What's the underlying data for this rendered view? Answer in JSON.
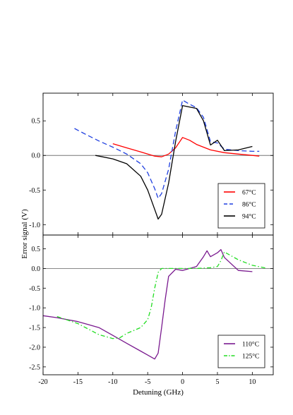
{
  "chart_data": [
    {
      "type": "line",
      "panel": "top",
      "xlabel": "Detuning (GHz)",
      "ylabel": "Error signal (V)",
      "xlim": [
        -20,
        13
      ],
      "ylim": [
        -1.15,
        0.9
      ],
      "xticks": [
        -20,
        -15,
        -10,
        -5,
        0,
        5,
        10
      ],
      "yticks": [
        0.5,
        0.0,
        -0.5,
        -1.0
      ],
      "ytick_labels": [
        "0.5",
        "0.0",
        "-0.5",
        "-1.0"
      ],
      "zero_line": true,
      "grid": false,
      "legend_position": "bottom-right",
      "series": [
        {
          "name": "67°C",
          "color": "#ff0000",
          "dash": "solid",
          "x": [
            -10,
            -8,
            -6,
            -5,
            -4,
            -3,
            -2,
            -1,
            0,
            1,
            2,
            3,
            4,
            6,
            8,
            10,
            11
          ],
          "y": [
            0.17,
            0.11,
            0.05,
            0.02,
            -0.01,
            -0.02,
            0.02,
            0.11,
            0.26,
            0.22,
            0.16,
            0.12,
            0.08,
            0.04,
            0.02,
            0.0,
            -0.01
          ]
        },
        {
          "name": "86°C",
          "color": "#1f3fe0",
          "dash": "dashed",
          "x": [
            -15.5,
            -14,
            -12,
            -10,
            -8,
            -6,
            -5,
            -4,
            -3.5,
            -3,
            -2,
            -1,
            0,
            1,
            2,
            3,
            4,
            5,
            6,
            8,
            10,
            11
          ],
          "y": [
            0.39,
            0.31,
            0.21,
            0.12,
            0.02,
            -0.12,
            -0.25,
            -0.48,
            -0.62,
            -0.55,
            -0.2,
            0.35,
            0.8,
            0.74,
            0.69,
            0.55,
            0.2,
            0.18,
            0.09,
            0.07,
            0.06,
            0.06
          ]
        },
        {
          "name": "94°C",
          "color": "#000000",
          "dash": "solid",
          "x": [
            -12.5,
            -10,
            -8,
            -6,
            -5,
            -4,
            -3.5,
            -3,
            -2,
            -1,
            0,
            1,
            2,
            3,
            4,
            5,
            6,
            8,
            10
          ],
          "y": [
            0.0,
            -0.05,
            -0.12,
            -0.3,
            -0.5,
            -0.78,
            -0.92,
            -0.85,
            -0.4,
            0.2,
            0.72,
            0.7,
            0.68,
            0.5,
            0.15,
            0.22,
            0.07,
            0.08,
            0.13
          ]
        }
      ]
    },
    {
      "type": "line",
      "panel": "bottom",
      "xlabel": "Detuning (GHz)",
      "ylabel": "",
      "xlim": [
        -20,
        13
      ],
      "ylim": [
        -2.7,
        0.85
      ],
      "xticks": [
        -20,
        -15,
        -10,
        -5,
        0,
        5,
        10
      ],
      "yticks": [
        0.5,
        0.0,
        -0.5,
        -1.0,
        -1.5,
        -2.0,
        -2.5
      ],
      "ytick_labels": [
        "0.5",
        "0.0",
        "-0.5",
        "-1.0",
        "-1.5",
        "-2.0",
        "-2.5"
      ],
      "zero_line": true,
      "grid": false,
      "legend_position": "bottom-right",
      "series": [
        {
          "name": "110°C",
          "color": "#7a1a8f",
          "dash": "solid",
          "x": [
            -20,
            -18,
            -15,
            -12,
            -10,
            -8,
            -6,
            -5,
            -4,
            -3.5,
            -3,
            -2.5,
            -2,
            -1,
            0,
            1,
            2,
            3,
            3.5,
            4,
            5,
            5.5,
            6,
            8,
            10
          ],
          "y": [
            -1.2,
            -1.25,
            -1.35,
            -1.5,
            -1.7,
            -1.9,
            -2.1,
            -2.2,
            -2.3,
            -2.15,
            -1.5,
            -0.8,
            -0.2,
            -0.02,
            -0.05,
            0.0,
            0.05,
            0.3,
            0.45,
            0.3,
            0.4,
            0.48,
            0.28,
            -0.05,
            -0.08
          ]
        },
        {
          "name": "125°C",
          "color": "#22dd22",
          "dash": "dashdot",
          "x": [
            -18,
            -15,
            -12,
            -10,
            -9,
            -8,
            -6,
            -5,
            -4.5,
            -4,
            -3.5,
            -3,
            -2,
            0,
            2,
            4,
            5,
            5.5,
            6,
            7,
            8,
            10,
            12
          ],
          "y": [
            -1.22,
            -1.4,
            -1.68,
            -1.78,
            -1.76,
            -1.65,
            -1.5,
            -1.3,
            -1.0,
            -0.5,
            -0.1,
            0.0,
            0.0,
            0.0,
            0.0,
            0.02,
            0.05,
            0.2,
            0.42,
            0.32,
            0.22,
            0.08,
            0.01
          ]
        }
      ]
    }
  ]
}
